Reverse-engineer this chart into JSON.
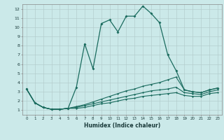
{
  "xlabel": "Humidex (Indice chaleur)",
  "bg_color": "#cbe9e9",
  "grid_color": "#b0c8c8",
  "line_color": "#1a6b5e",
  "x": [
    0,
    1,
    2,
    3,
    4,
    5,
    6,
    7,
    8,
    9,
    10,
    11,
    12,
    13,
    14,
    15,
    16,
    17,
    18,
    19,
    20,
    21,
    22,
    23
  ],
  "y_main": [
    3.3,
    1.8,
    1.3,
    1.1,
    1.1,
    1.2,
    3.5,
    8.2,
    5.5,
    10.4,
    10.8,
    9.5,
    11.2,
    11.2,
    12.3,
    11.5,
    10.5,
    7.0,
    5.3,
    3.2,
    3.0,
    2.9,
    3.2,
    3.4
  ],
  "y_line2": [
    3.3,
    1.8,
    1.3,
    1.1,
    1.1,
    1.2,
    1.4,
    1.6,
    1.9,
    2.2,
    2.5,
    2.8,
    3.1,
    3.3,
    3.6,
    3.8,
    4.0,
    4.3,
    4.6,
    3.2,
    3.0,
    2.9,
    3.2,
    3.4
  ],
  "y_line3": [
    3.3,
    1.8,
    1.3,
    1.1,
    1.1,
    1.2,
    1.3,
    1.5,
    1.7,
    1.9,
    2.1,
    2.3,
    2.5,
    2.7,
    2.9,
    3.1,
    3.2,
    3.3,
    3.5,
    2.9,
    2.8,
    2.7,
    3.0,
    3.2
  ],
  "y_line4": [
    3.3,
    1.8,
    1.3,
    1.1,
    1.1,
    1.2,
    1.2,
    1.3,
    1.5,
    1.7,
    1.8,
    2.0,
    2.2,
    2.3,
    2.5,
    2.6,
    2.7,
    2.8,
    2.9,
    2.6,
    2.5,
    2.5,
    2.8,
    2.9
  ],
  "ylim": [
    0.5,
    12.5
  ],
  "xlim": [
    -0.5,
    23.5
  ],
  "yticks": [
    1,
    2,
    3,
    4,
    5,
    6,
    7,
    8,
    9,
    10,
    11,
    12
  ],
  "xticks": [
    0,
    1,
    2,
    3,
    4,
    5,
    6,
    7,
    8,
    9,
    10,
    11,
    12,
    13,
    14,
    15,
    16,
    17,
    18,
    19,
    20,
    21,
    22,
    23
  ]
}
